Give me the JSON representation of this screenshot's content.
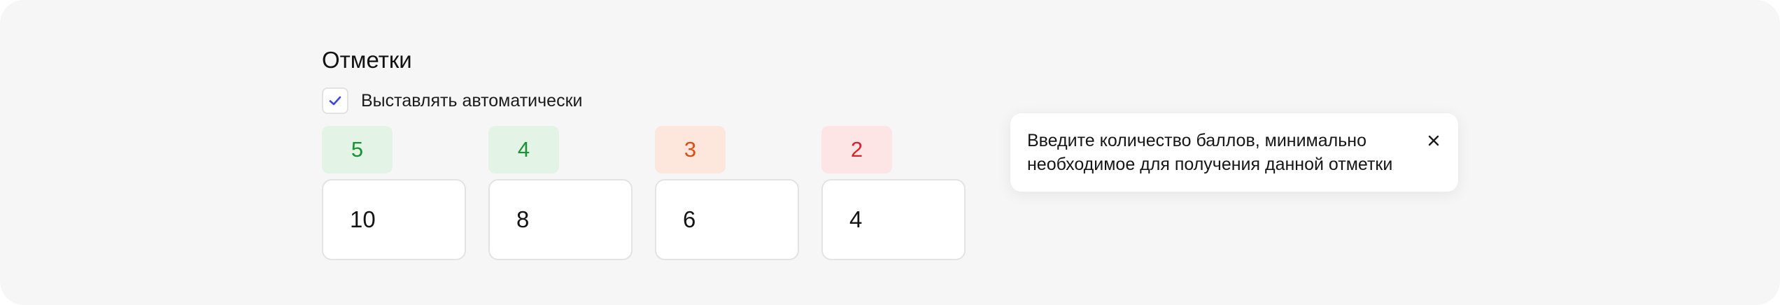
{
  "section": {
    "title": "Отметки"
  },
  "auto": {
    "label": "Выставлять автоматически",
    "checked": true,
    "check_color": "#3b49df"
  },
  "grades": [
    {
      "grade": "5",
      "score": "10",
      "badge_bg": "#e3f4e6",
      "badge_color": "#1a9334"
    },
    {
      "grade": "4",
      "score": "8",
      "badge_bg": "#e3f4e6",
      "badge_color": "#1a9334"
    },
    {
      "grade": "3",
      "score": "6",
      "badge_bg": "#fde6dc",
      "badge_color": "#dd4e17"
    },
    {
      "grade": "2",
      "score": "4",
      "badge_bg": "#fde5e5",
      "badge_color": "#d9222b"
    }
  ],
  "tooltip": {
    "text": "Введите количество баллов, минимально необходимое для получения данной отметки",
    "close_icon": "close-icon"
  }
}
